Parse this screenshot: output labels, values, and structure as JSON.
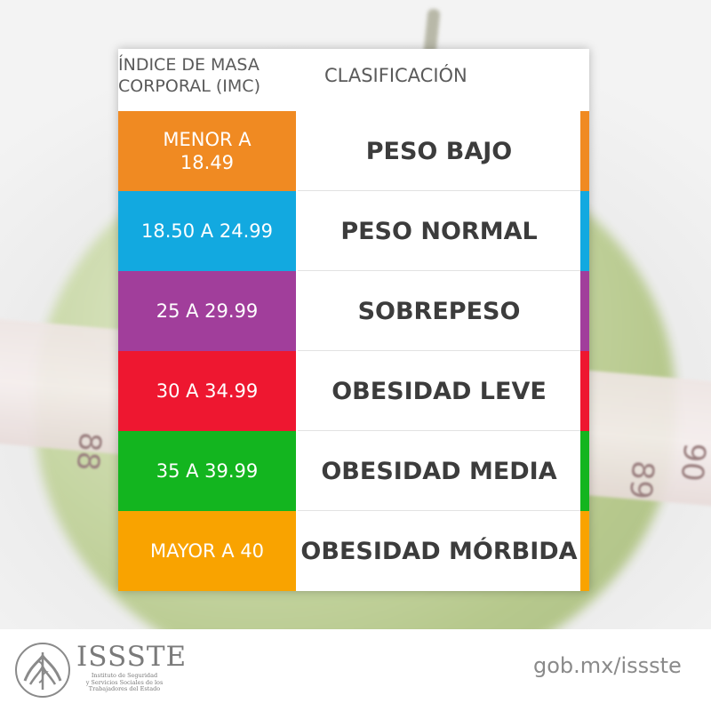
{
  "header": {
    "left_line1": "ÍNDICE DE MASA",
    "left_line2": "CORPORAL (IMC)",
    "right": "CLASIFICACIÓN"
  },
  "rows": [
    {
      "range_line1": "MENOR A",
      "range_line2": "18.49",
      "classification": "PESO BAJO",
      "color": "#f08a22"
    },
    {
      "range_line1": "18.50 A 24.99",
      "range_line2": "",
      "classification": "PESO NORMAL",
      "color": "#12a9e0"
    },
    {
      "range_line1": "25 A 29.99",
      "range_line2": "",
      "classification": "SOBREPESO",
      "color": "#a13e9b"
    },
    {
      "range_line1": "30 A 34.99",
      "range_line2": "",
      "classification": "OBESIDAD LEVE",
      "color": "#ee1730"
    },
    {
      "range_line1": "35 A 39.99",
      "range_line2": "",
      "classification": "OBESIDAD MEDIA",
      "color": "#13b51f"
    },
    {
      "range_line1": "MAYOR A 40",
      "range_line2": "",
      "classification": "OBESIDAD MÓRBIDA",
      "color": "#f9a300"
    }
  ],
  "background_tape_numbers": [
    "88",
    "89",
    "90"
  ],
  "footer": {
    "logo_title": "ISSSTE",
    "logo_subtitle_line1": "Instituto de Seguridad",
    "logo_subtitle_line2": "y Servicios Sociales de los",
    "logo_subtitle_line3": "Trabajadores del Estado",
    "url": "gob.mx/issste"
  },
  "icons": {
    "emblem": "issste-emblem-icon"
  }
}
